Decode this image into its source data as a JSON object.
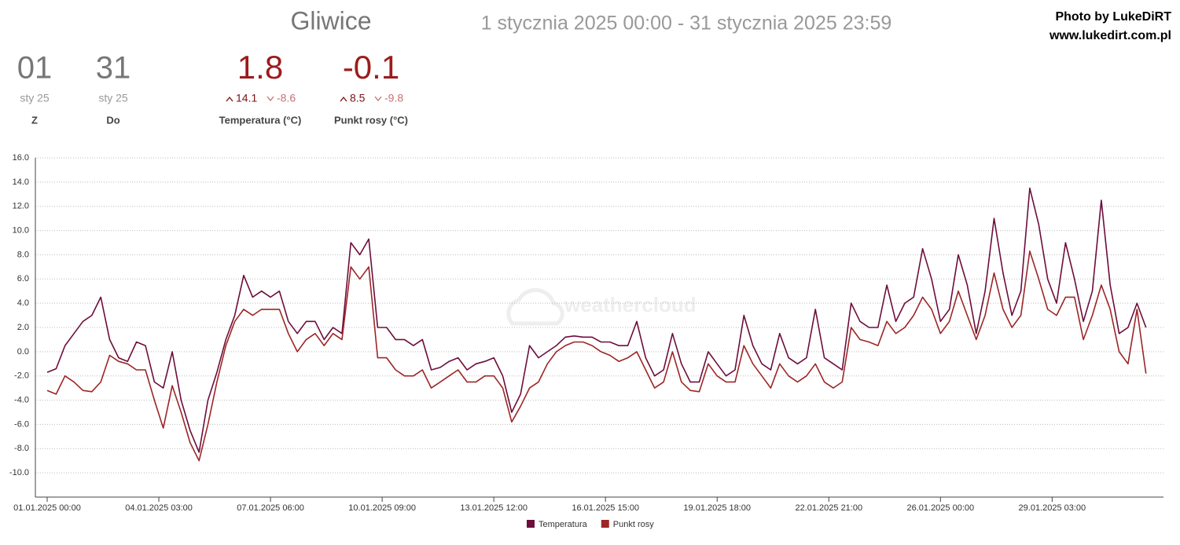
{
  "header": {
    "title": "Gliwice",
    "range": "1 stycznia 2025 00:00 - 31 stycznia 2025 23:59",
    "credit": "Photo by LukeDiRT",
    "site": "www.lukedirt.com.pl"
  },
  "stats": [
    {
      "value": "01",
      "sub": "sty 25",
      "label": "Z"
    },
    {
      "value": "31",
      "sub": "sty 25",
      "label": "Do"
    },
    {
      "value": "1.8",
      "max": "14.1",
      "min": "-8.6",
      "label": "Temperatura (°C)"
    },
    {
      "value": "-0.1",
      "max": "8.5",
      "min": "-9.8",
      "label": "Punkt rosy (°C)"
    }
  ],
  "chart_data": {
    "type": "line",
    "watermark": "weathercloud",
    "xlim": [
      "01.01.2025 00:00",
      "31.01.2025 23:59"
    ],
    "xticks": [
      "01.01.2025 00:00",
      "04.01.2025 03:00",
      "07.01.2025 06:00",
      "10.01.2025 09:00",
      "13.01.2025 12:00",
      "16.01.2025 15:00",
      "19.01.2025 18:00",
      "22.01.2025 21:00",
      "26.01.2025 00:00",
      "29.01.2025 03:00"
    ],
    "ylim": [
      -12,
      16
    ],
    "yticks": [
      {
        "value": -10,
        "label": "-10.0"
      },
      {
        "value": -8,
        "label": "-8.0"
      },
      {
        "value": -6,
        "label": "-6.0"
      },
      {
        "value": -4,
        "label": "-4.0"
      },
      {
        "value": -2,
        "label": "-2.0"
      },
      {
        "value": 0,
        "label": "0.0"
      },
      {
        "value": 2,
        "label": "2.0"
      },
      {
        "value": 4,
        "label": "4.0"
      },
      {
        "value": 6,
        "label": "6.0"
      },
      {
        "value": 8,
        "label": "8.0"
      },
      {
        "value": 10,
        "label": "10.0"
      },
      {
        "value": 12,
        "label": "12.0"
      },
      {
        "value": 14,
        "label": "14.0"
      },
      {
        "value": 16,
        "label": "16.0"
      }
    ],
    "grid": true,
    "x": [
      "01.01.2025 00:00",
      "01.01.2025 06:00",
      "01.01.2025 12:00",
      "01.01.2025 18:00",
      "02.01.2025 00:00",
      "02.01.2025 06:00",
      "02.01.2025 12:00",
      "02.01.2025 18:00",
      "03.01.2025 00:00",
      "03.01.2025 06:00",
      "03.01.2025 12:00",
      "03.01.2025 18:00",
      "04.01.2025 00:00",
      "04.01.2025 06:00",
      "04.01.2025 12:00",
      "04.01.2025 18:00",
      "05.01.2025 00:00",
      "05.01.2025 06:00",
      "05.01.2025 12:00",
      "05.01.2025 18:00",
      "06.01.2025 00:00",
      "06.01.2025 06:00",
      "06.01.2025 12:00",
      "06.01.2025 18:00",
      "07.01.2025 00:00",
      "07.01.2025 06:00",
      "07.01.2025 12:00",
      "07.01.2025 18:00",
      "08.01.2025 00:00",
      "08.01.2025 06:00",
      "08.01.2025 12:00",
      "08.01.2025 18:00",
      "09.01.2025 00:00",
      "09.01.2025 06:00",
      "09.01.2025 12:00",
      "09.01.2025 18:00",
      "10.01.2025 00:00",
      "10.01.2025 06:00",
      "10.01.2025 12:00",
      "10.01.2025 18:00",
      "11.01.2025 00:00",
      "11.01.2025 06:00",
      "11.01.2025 12:00",
      "11.01.2025 18:00",
      "12.01.2025 00:00",
      "12.01.2025 06:00",
      "12.01.2025 12:00",
      "12.01.2025 18:00",
      "13.01.2025 00:00",
      "13.01.2025 06:00",
      "13.01.2025 12:00",
      "13.01.2025 18:00",
      "14.01.2025 00:00",
      "14.01.2025 06:00",
      "14.01.2025 12:00",
      "14.01.2025 18:00",
      "15.01.2025 00:00",
      "15.01.2025 06:00",
      "15.01.2025 12:00",
      "15.01.2025 18:00",
      "16.01.2025 00:00",
      "16.01.2025 06:00",
      "16.01.2025 12:00",
      "16.01.2025 18:00",
      "17.01.2025 00:00",
      "17.01.2025 06:00",
      "17.01.2025 12:00",
      "17.01.2025 18:00",
      "18.01.2025 00:00",
      "18.01.2025 06:00",
      "18.01.2025 12:00",
      "18.01.2025 18:00",
      "19.01.2025 00:00",
      "19.01.2025 06:00",
      "19.01.2025 12:00",
      "19.01.2025 18:00",
      "20.01.2025 00:00",
      "20.01.2025 06:00",
      "20.01.2025 12:00",
      "20.01.2025 18:00",
      "21.01.2025 00:00",
      "21.01.2025 06:00",
      "21.01.2025 12:00",
      "21.01.2025 18:00",
      "22.01.2025 00:00",
      "22.01.2025 06:00",
      "22.01.2025 12:00",
      "22.01.2025 18:00",
      "23.01.2025 00:00",
      "23.01.2025 06:00",
      "23.01.2025 12:00",
      "23.01.2025 18:00",
      "24.01.2025 00:00",
      "24.01.2025 06:00",
      "24.01.2025 12:00",
      "24.01.2025 18:00",
      "25.01.2025 00:00",
      "25.01.2025 06:00",
      "25.01.2025 12:00",
      "25.01.2025 18:00",
      "26.01.2025 00:00",
      "26.01.2025 06:00",
      "26.01.2025 12:00",
      "26.01.2025 18:00",
      "27.01.2025 00:00",
      "27.01.2025 06:00",
      "27.01.2025 12:00",
      "27.01.2025 18:00",
      "28.01.2025 00:00",
      "28.01.2025 06:00",
      "28.01.2025 12:00",
      "28.01.2025 18:00",
      "29.01.2025 00:00",
      "29.01.2025 06:00",
      "29.01.2025 12:00",
      "29.01.2025 18:00",
      "30.01.2025 00:00",
      "30.01.2025 06:00",
      "30.01.2025 12:00",
      "30.01.2025 18:00",
      "31.01.2025 00:00",
      "31.01.2025 06:00",
      "31.01.2025 12:00",
      "31.01.2025 18:00"
    ],
    "series": [
      {
        "name": "Temperatura",
        "color": "#6d0d3b",
        "values": [
          -1.7,
          -1.4,
          0.5,
          1.5,
          2.5,
          3.0,
          4.5,
          1.0,
          -0.5,
          -0.8,
          0.8,
          0.5,
          -2.5,
          -3.0,
          0.0,
          -4.0,
          -6.5,
          -8.3,
          -4.0,
          -1.7,
          1.0,
          3.0,
          6.3,
          4.5,
          5.0,
          4.5,
          5.0,
          2.5,
          1.5,
          2.5,
          2.5,
          1.0,
          2.0,
          1.5,
          9.0,
          8.0,
          9.3,
          2.0,
          2.0,
          1.0,
          1.0,
          0.5,
          1.0,
          -1.5,
          -1.3,
          -0.8,
          -0.5,
          -1.5,
          -1.0,
          -0.8,
          -0.5,
          -2.0,
          -5.0,
          -3.5,
          0.5,
          -0.5,
          0.0,
          0.5,
          1.2,
          1.3,
          1.2,
          1.2,
          0.8,
          0.8,
          0.5,
          0.5,
          2.5,
          -0.5,
          -2.0,
          -1.5,
          1.5,
          -1.0,
          -2.5,
          -2.5,
          0.0,
          -1.0,
          -2.0,
          -1.5,
          3.0,
          0.5,
          -1.0,
          -1.5,
          1.5,
          -0.5,
          -1.0,
          -0.5,
          3.5,
          -0.5,
          -1.0,
          -1.5,
          4.0,
          2.5,
          2.0,
          2.0,
          5.5,
          2.5,
          4.0,
          4.5,
          8.5,
          6.0,
          2.5,
          3.5,
          8.0,
          5.5,
          1.5,
          5.0,
          11.0,
          6.5,
          3.0,
          5.0,
          13.5,
          10.5,
          6.0,
          4.0,
          9.0,
          6.0,
          2.5,
          5.0,
          12.5,
          5.5,
          1.5,
          2.0,
          4.0,
          2.0
        ]
      },
      {
        "name": "Punkt rosy",
        "color": "#9c2626",
        "values": [
          -3.2,
          -3.5,
          -2.0,
          -2.5,
          -3.2,
          -3.3,
          -2.5,
          -0.3,
          -0.8,
          -1.0,
          -1.5,
          -1.5,
          -4.0,
          -6.3,
          -2.8,
          -5.0,
          -7.5,
          -9.0,
          -6.0,
          -2.5,
          0.5,
          2.5,
          3.5,
          3.0,
          3.5,
          3.5,
          3.5,
          1.5,
          0.0,
          1.0,
          1.5,
          0.5,
          1.5,
          1.0,
          7.0,
          6.0,
          7.0,
          -0.5,
          -0.5,
          -1.5,
          -2.0,
          -2.0,
          -1.5,
          -3.0,
          -2.5,
          -2.0,
          -1.5,
          -2.5,
          -2.5,
          -2.0,
          -2.0,
          -3.0,
          -5.8,
          -4.5,
          -3.0,
          -2.5,
          -1.0,
          0.0,
          0.5,
          0.8,
          0.8,
          0.5,
          0.0,
          -0.3,
          -0.8,
          -0.5,
          0.0,
          -1.5,
          -3.0,
          -2.5,
          0.0,
          -2.5,
          -3.2,
          -3.3,
          -1.0,
          -2.0,
          -2.5,
          -2.5,
          0.5,
          -1.0,
          -2.0,
          -3.0,
          -1.0,
          -2.0,
          -2.5,
          -2.0,
          -1.0,
          -2.5,
          -3.0,
          -2.5,
          2.0,
          1.0,
          0.8,
          0.5,
          2.5,
          1.5,
          2.0,
          3.0,
          4.5,
          3.5,
          1.5,
          2.5,
          5.0,
          3.0,
          1.0,
          3.0,
          6.5,
          3.5,
          2.0,
          3.0,
          8.3,
          6.0,
          3.5,
          3.0,
          4.5,
          4.5,
          1.0,
          3.0,
          5.5,
          3.5,
          0.0,
          -1.0,
          3.5,
          -1.8
        ]
      }
    ]
  }
}
